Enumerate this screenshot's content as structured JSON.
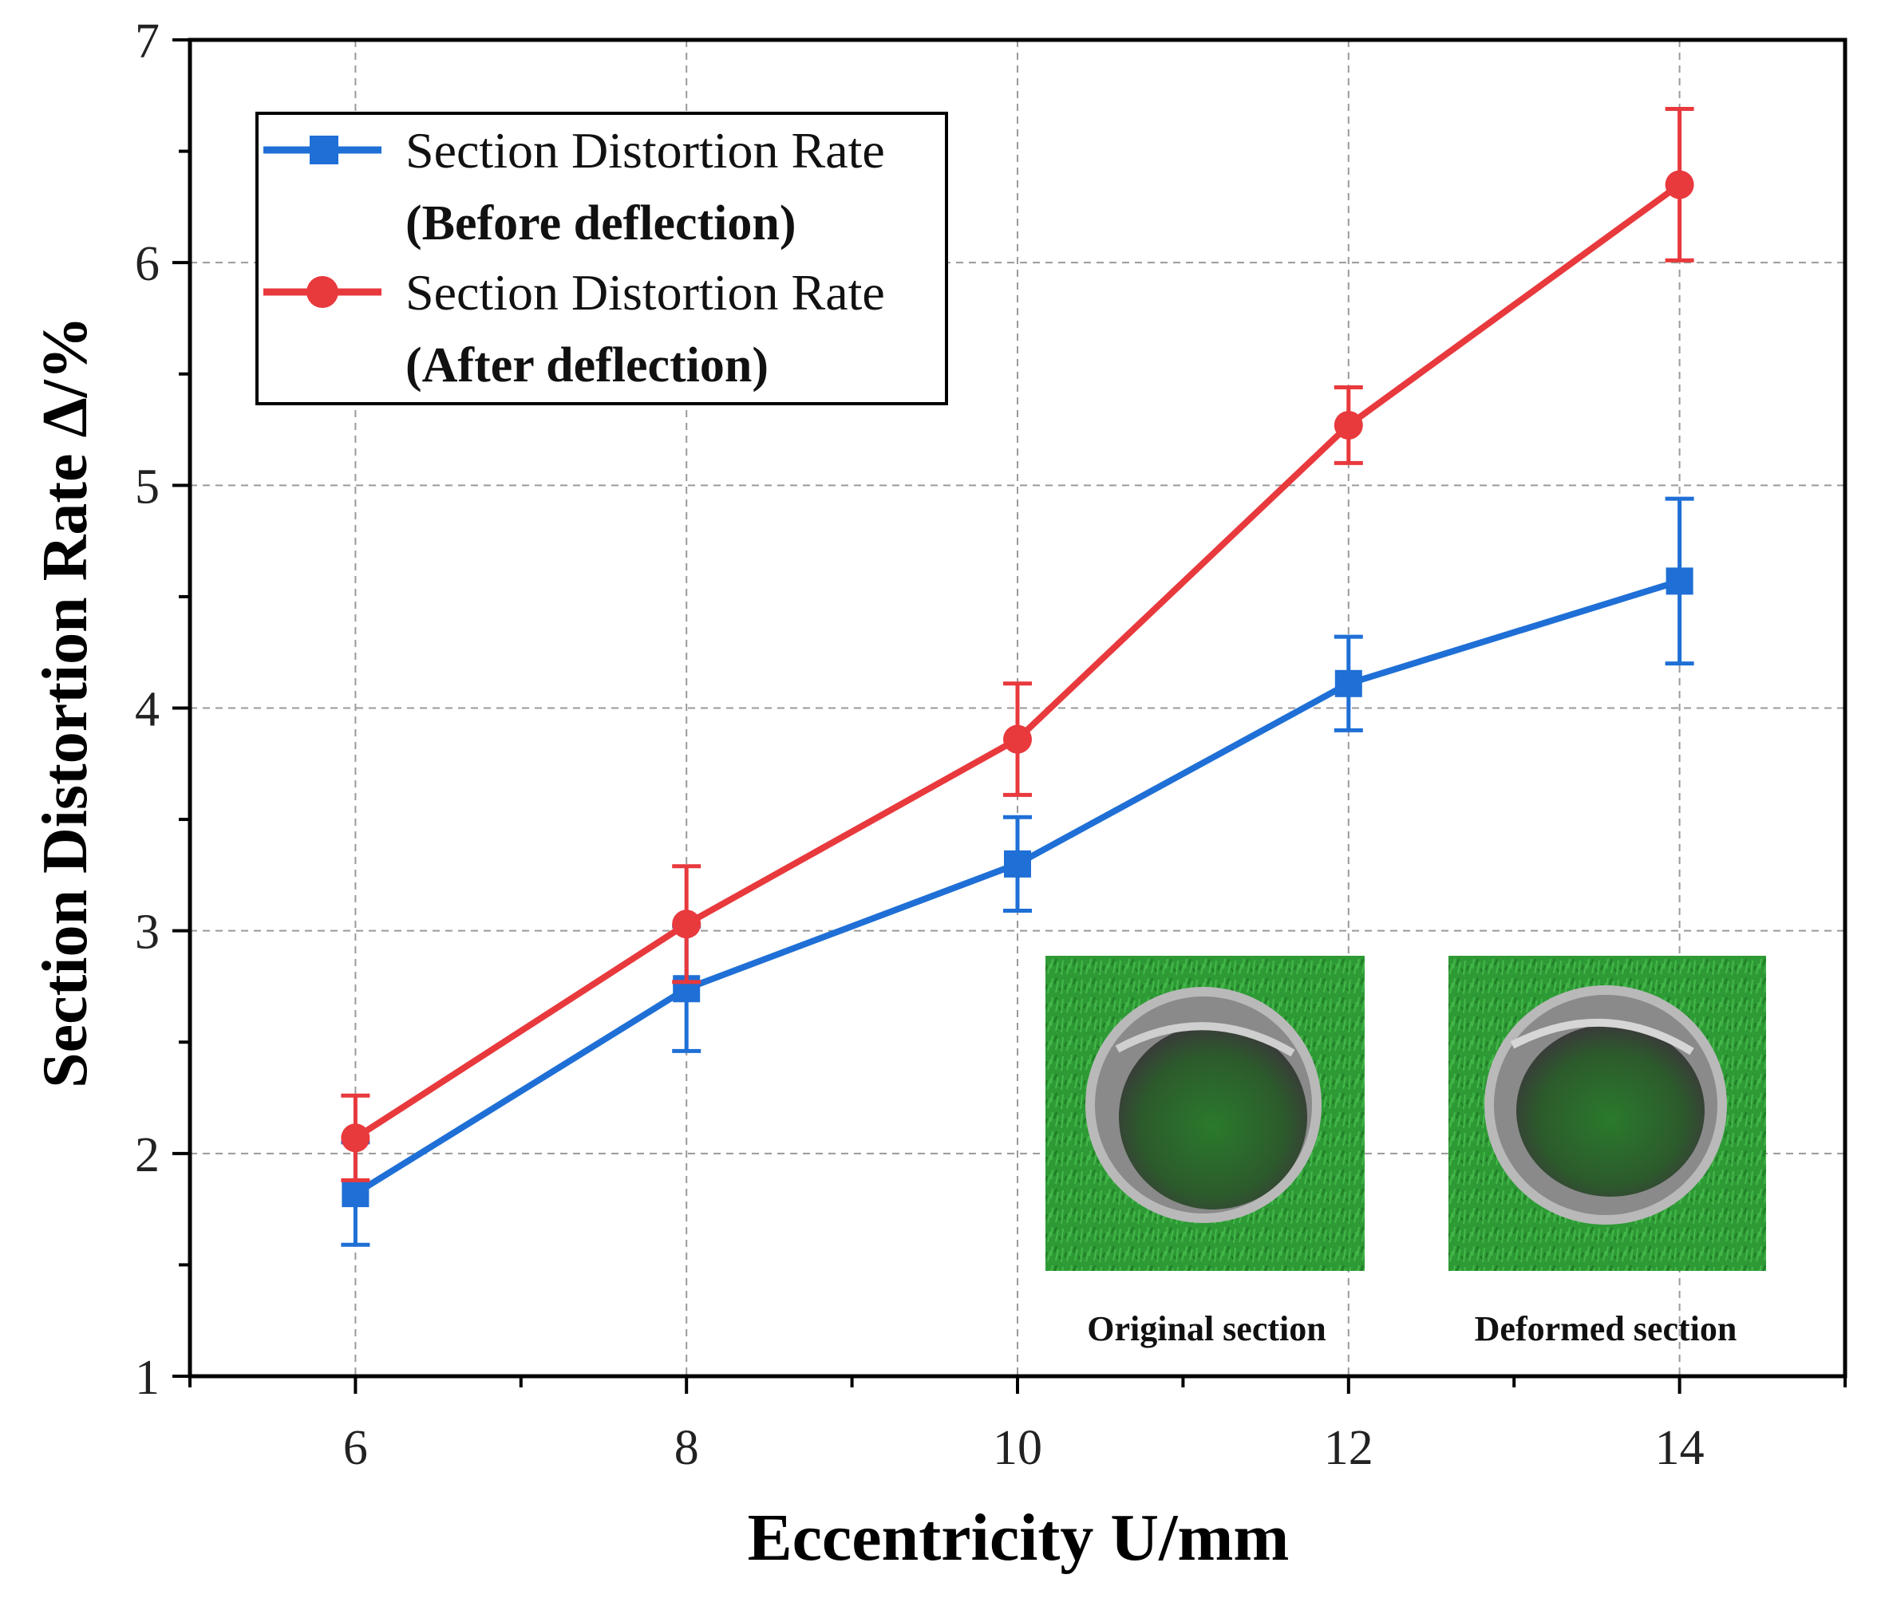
{
  "chart_data": {
    "type": "line",
    "title": "",
    "xlabel": "Eccentricity U/mm",
    "ylabel": "Section Distortion Rate Δ/%",
    "xlim": [
      5,
      15
    ],
    "ylim": [
      1,
      7
    ],
    "xticks": [
      "6",
      "8",
      "10",
      "12",
      "14"
    ],
    "yticks": [
      "1",
      "2",
      "3",
      "4",
      "5",
      "6",
      "7"
    ],
    "grid": true,
    "legend_position": "top-left",
    "x": [
      6,
      8,
      10,
      12,
      14
    ],
    "series": [
      {
        "name": "Section Distortion Rate",
        "name_suffix": "(Before deflection)",
        "color": "#1f6fd6",
        "marker": "square",
        "values": [
          1.82,
          2.74,
          3.3,
          4.11,
          4.57
        ],
        "error": [
          0.23,
          0.28,
          0.21,
          0.21,
          0.37
        ]
      },
      {
        "name": "Section Distortion Rate",
        "name_suffix": "(After deflection)",
        "color": "#e8393d",
        "marker": "circle",
        "values": [
          2.07,
          3.03,
          3.86,
          5.27,
          6.35
        ],
        "error": [
          0.19,
          0.26,
          0.25,
          0.17,
          0.34
        ]
      }
    ],
    "inset": {
      "captions": [
        "Original section",
        "Deformed section"
      ],
      "background_color": "#2e9a35",
      "ring_color": "#9a9a9a"
    }
  }
}
